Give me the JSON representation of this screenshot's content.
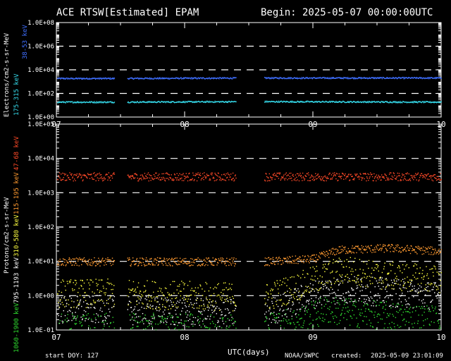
{
  "header": {
    "title": "ACE RTSW[Estimated] EPAM",
    "begin": "Begin: 2025-05-07 00:00:00UTC"
  },
  "footer": {
    "start_doy": "start DOY:  127",
    "xlabel": "UTC(days)",
    "source": "NOAA/SWPC",
    "created_label": "created:",
    "created": "2025-05-09 23:01:09"
  },
  "colors": {
    "background": "#000000",
    "axes": "#ffffff",
    "e_38_53": "#3f6fff",
    "e_175_315": "#35d8e8",
    "p_47_68": "#ff4a28",
    "p_115_195": "#ff9a30",
    "p_310_580": "#ffff40",
    "p_795_1193": "#ffffff",
    "p_1060_1900": "#30e030"
  },
  "chart_data": [
    {
      "type": "scatter",
      "panel": "electrons",
      "ylabel": "Electrons/cm2-s-sr-MeV",
      "yscale": "log",
      "ylim": [
        1,
        100000000
      ],
      "yticks": [
        "1.0E+00",
        "1.0E+02",
        "1.0E+04",
        "1.0E+06",
        "1.0E+08"
      ],
      "xlim": [
        7,
        10
      ],
      "xticks": [
        "07",
        "08",
        "09",
        "10"
      ],
      "dashed_grid": true,
      "series": [
        {
          "name": "38-53 keV",
          "color": "#3f6fff",
          "level": [
            [
              7.0,
              2000
            ],
            [
              7.4,
              2000
            ],
            [
              8.62,
              2200
            ],
            [
              10.0,
              2200
            ]
          ],
          "gaps": [
            [
              7.45,
              7.55
            ],
            [
              8.4,
              8.62
            ]
          ]
        },
        {
          "name": "175-315 keV",
          "color": "#35d8e8",
          "level": [
            [
              7.0,
              20
            ],
            [
              7.4,
              20
            ],
            [
              8.62,
              22
            ],
            [
              10.0,
              20
            ]
          ],
          "gaps": [
            [
              7.45,
              7.55
            ],
            [
              8.4,
              8.62
            ]
          ]
        }
      ]
    },
    {
      "type": "scatter",
      "panel": "protons",
      "ylabel": "Protons/cm2-s-sr-MeV",
      "yscale": "log",
      "ylim": [
        0.1,
        100000
      ],
      "yticks": [
        "1.0E-01",
        "1.0E+00",
        "1.0E+01",
        "1.0E+02",
        "1.0E+03",
        "1.0E+04",
        "1.0E+05"
      ],
      "xlim": [
        7,
        10
      ],
      "xticks": [
        "07",
        "08",
        "09",
        "10"
      ],
      "dashed_grid": true,
      "series": [
        {
          "name": "47-68 keV",
          "color": "#ff4a28",
          "level": [
            [
              7.0,
              3000
            ],
            [
              7.4,
              3000
            ],
            [
              8.62,
              3000
            ],
            [
              10.0,
              3000
            ]
          ],
          "gaps": [
            [
              7.45,
              7.55
            ],
            [
              8.4,
              8.62
            ]
          ]
        },
        {
          "name": "115-195 keV",
          "color": "#ff9a30",
          "level": [
            [
              7.0,
              10
            ],
            [
              7.4,
              10
            ],
            [
              8.62,
              10
            ],
            [
              9.0,
              12
            ],
            [
              9.2,
              22
            ],
            [
              9.6,
              25
            ],
            [
              10.0,
              20
            ]
          ],
          "gaps": [
            [
              7.45,
              7.55
            ],
            [
              8.4,
              8.62
            ]
          ]
        },
        {
          "name": "310-580 keV",
          "color": "#ffff40",
          "level": [
            [
              7.0,
              1.2
            ],
            [
              7.4,
              1.2
            ],
            [
              8.62,
              0.9
            ],
            [
              8.9,
              2
            ],
            [
              9.1,
              4
            ],
            [
              9.25,
              6
            ],
            [
              9.5,
              4
            ],
            [
              10.0,
              3
            ]
          ],
          "gaps": [
            [
              7.45,
              7.55
            ],
            [
              8.4,
              8.62
            ]
          ]
        },
        {
          "name": "795-1193 keV",
          "color": "#ffffff",
          "level": [
            [
              7.0,
              0.4
            ],
            [
              7.4,
              0.4
            ],
            [
              8.62,
              0.3
            ],
            [
              8.9,
              0.8
            ],
            [
              9.1,
              1.5
            ],
            [
              9.3,
              1.5
            ],
            [
              10.0,
              1.0
            ]
          ],
          "gaps": [
            [
              7.45,
              7.55
            ],
            [
              8.4,
              8.62
            ]
          ]
        },
        {
          "name": "1060-1900 keV",
          "color": "#30e030",
          "level": [
            [
              7.0,
              0.12
            ],
            [
              7.4,
              0.12
            ],
            [
              8.62,
              0.12
            ],
            [
              8.9,
              0.2
            ],
            [
              9.1,
              0.4
            ],
            [
              9.4,
              0.3
            ],
            [
              10.0,
              0.2
            ]
          ],
          "gaps": [
            [
              7.45,
              7.55
            ],
            [
              8.4,
              8.62
            ]
          ]
        }
      ]
    }
  ]
}
